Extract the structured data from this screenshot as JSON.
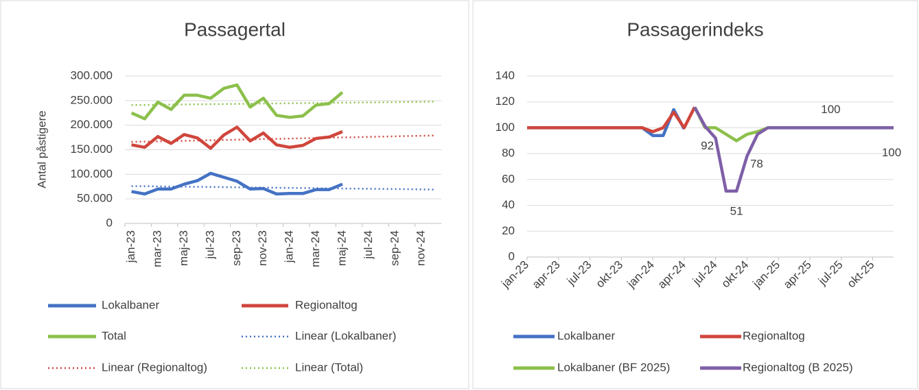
{
  "chart_data": [
    {
      "type": "line",
      "title": "Passagertal",
      "y_label": "Antal påstigere",
      "categories": [
        "jan-23",
        null,
        "mar-23",
        null,
        "maj-23",
        null,
        "jul-23",
        null,
        "sep-23",
        null,
        "nov-23",
        null,
        "jan-24",
        null,
        "mar-24",
        null,
        "maj-24",
        null,
        "jul-24",
        null,
        "sep-24",
        null,
        "nov-24",
        null
      ],
      "ylim": [
        0,
        300000
      ],
      "yticks": [
        0,
        {
          "value": 50000,
          "label": "50.000"
        },
        {
          "value": 100000,
          "label": "100.000"
        },
        {
          "value": 150000,
          "label": "150.000"
        },
        {
          "value": 200000,
          "label": "200.000"
        },
        {
          "value": 250000,
          "label": "250.000"
        },
        {
          "value": 300000,
          "label": "300.000"
        }
      ],
      "grid": true,
      "legend": "bottom",
      "series": [
        {
          "name": "Lokalbaner",
          "color": "#4472c4",
          "values": [
            65000,
            60000,
            70000,
            70000,
            80000,
            87000,
            102000,
            94000,
            86000,
            70000,
            71000,
            60000,
            61000,
            61000,
            69000,
            69000,
            80000,
            null,
            null,
            null,
            null,
            null,
            null,
            null
          ]
        },
        {
          "name": "Regionaltog",
          "color": "#d0463c",
          "values": [
            160000,
            155000,
            177000,
            163000,
            181000,
            174000,
            153000,
            180000,
            196000,
            168000,
            184000,
            160000,
            155000,
            159000,
            173000,
            176000,
            187000,
            null,
            null,
            null,
            null,
            null,
            null,
            null
          ]
        },
        {
          "name": "Total",
          "color": "#8cc04b",
          "values": [
            225000,
            213000,
            247000,
            232000,
            261000,
            261000,
            255000,
            275000,
            282000,
            237000,
            255000,
            220000,
            216000,
            219000,
            241000,
            244000,
            267000,
            null,
            null,
            null,
            null,
            null,
            null,
            null
          ]
        },
        {
          "name": "Linear (Lokalbaner)",
          "color": "#4472c4",
          "dotted": true,
          "values": [
            76000,
            75700,
            75400,
            75100,
            74800,
            74500,
            74200,
            73900,
            73600,
            73300,
            73000,
            72700,
            72400,
            72100,
            71800,
            71500,
            71200,
            70900,
            70600,
            70300,
            70000,
            69700,
            69400,
            69100
          ]
        },
        {
          "name": "Linear (Regionaltog)",
          "color": "#d0463c",
          "dotted": true,
          "values": [
            166000,
            166600,
            167100,
            167700,
            168300,
            168800,
            169400,
            170000,
            170500,
            171100,
            171700,
            172200,
            172800,
            173400,
            173900,
            174500,
            175100,
            175600,
            176200,
            176800,
            177300,
            177900,
            178500,
            179000
          ]
        },
        {
          "name": "Linear (Total)",
          "color": "#8cc04b",
          "dotted": true,
          "values": [
            241000,
            241300,
            241600,
            241900,
            242200,
            242500,
            242800,
            243000,
            243400,
            243700,
            244000,
            244300,
            244600,
            244900,
            245200,
            245500,
            245800,
            246100,
            246400,
            246700,
            247000,
            247300,
            247600,
            248000
          ]
        }
      ]
    },
    {
      "type": "line",
      "title": "Passagerindeks",
      "categories": [
        "jan-23",
        null,
        null,
        "apr-23",
        null,
        null,
        "jul-23",
        null,
        null,
        "okt-23",
        null,
        null,
        "jan-24",
        null,
        null,
        "apr-24",
        null,
        null,
        "jul-24",
        null,
        null,
        "okt-24",
        null,
        null,
        "jan-25",
        null,
        null,
        "apr-25",
        null,
        null,
        "jul-25",
        null,
        null,
        "okt-25",
        null,
        null
      ],
      "ylim": [
        0,
        140
      ],
      "yticks": [
        0,
        20,
        40,
        60,
        80,
        100,
        120,
        140
      ],
      "grid": true,
      "legend": "bottom",
      "series": [
        {
          "name": "Lokalbaner",
          "color": "#4472c4",
          "values": [
            100,
            100,
            100,
            100,
            100,
            100,
            100,
            100,
            100,
            100,
            100,
            100,
            94,
            94,
            114,
            99,
            null,
            null,
            null,
            null,
            null,
            null,
            null,
            null,
            null,
            null,
            null,
            null,
            null,
            null,
            null,
            null,
            null,
            null,
            null,
            null
          ]
        },
        {
          "name": "Regionaltog",
          "color": "#d0463c",
          "values": [
            100,
            100,
            100,
            100,
            100,
            100,
            100,
            100,
            100,
            100,
            100,
            100,
            97,
            100,
            112,
            100,
            116,
            null,
            null,
            null,
            null,
            null,
            null,
            null,
            null,
            null,
            null,
            null,
            null,
            null,
            null,
            null,
            null,
            null,
            null,
            null
          ]
        },
        {
          "name": "Lokalbaner (BF 2025)",
          "color": "#8cc04b",
          "values": [
            null,
            null,
            null,
            null,
            null,
            null,
            null,
            null,
            null,
            null,
            null,
            null,
            null,
            null,
            null,
            null,
            116,
            100,
            100,
            95,
            90,
            95,
            97,
            100,
            100,
            100,
            100,
            100,
            100,
            100,
            100,
            100,
            100,
            100,
            100,
            100
          ]
        },
        {
          "name": "Regionaltog (B 2025)",
          "color": "#7f5fa8",
          "values": [
            null,
            null,
            null,
            null,
            null,
            null,
            null,
            null,
            null,
            null,
            null,
            null,
            null,
            null,
            null,
            null,
            116,
            101,
            92,
            51,
            51,
            78,
            95,
            100,
            100,
            100,
            100,
            100,
            100,
            100,
            100,
            100,
            100,
            100,
            100,
            100
          ],
          "value_labels": [
            null,
            null,
            null,
            null,
            null,
            null,
            null,
            null,
            null,
            null,
            null,
            null,
            null,
            null,
            null,
            null,
            null,
            null,
            "92",
            null,
            "51",
            "78",
            null,
            null,
            null,
            null,
            null,
            null,
            null,
            "100",
            null,
            null,
            null,
            null,
            null,
            "100"
          ]
        }
      ]
    }
  ]
}
